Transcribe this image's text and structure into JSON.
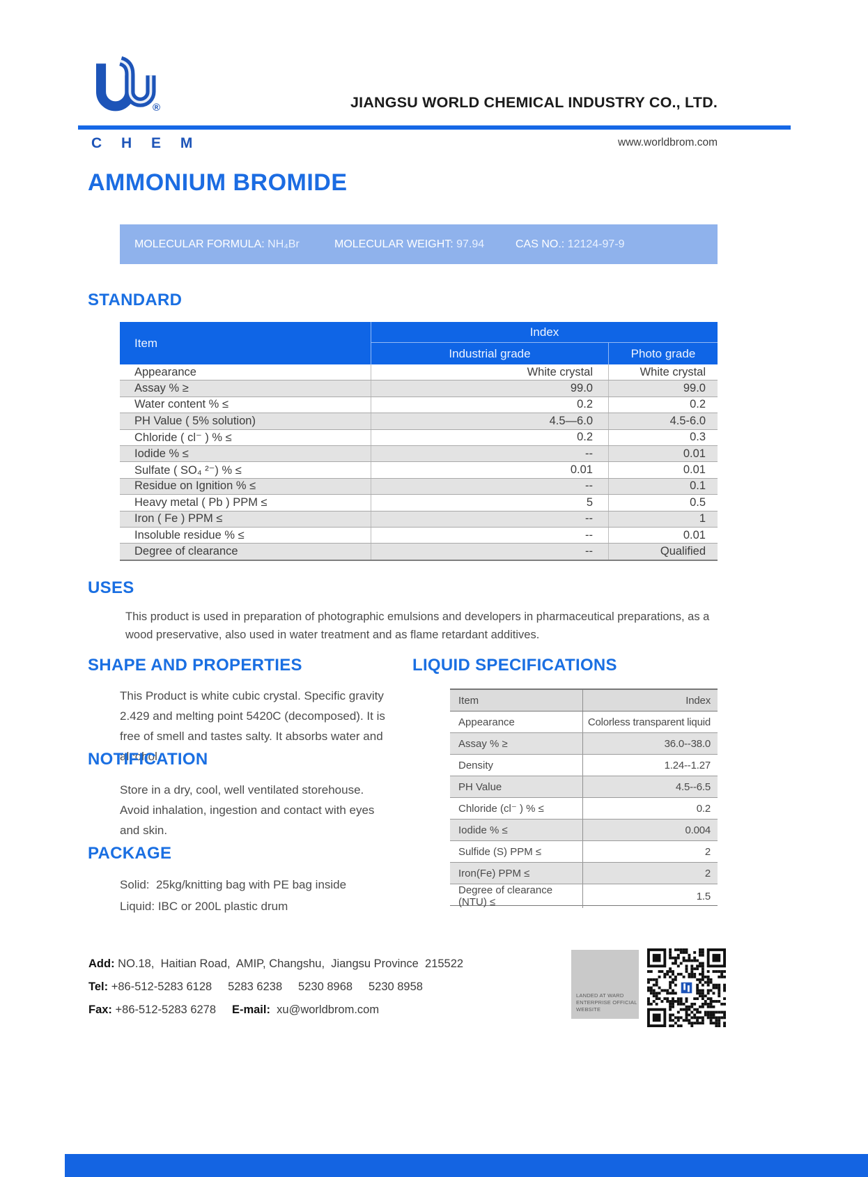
{
  "colors": {
    "accent_blue": "#1a6fe2",
    "table_header_blue": "#0f65e6",
    "logo_blue": "#1d54b8",
    "banner_blue": "#8fb2ec",
    "stripe_gray": "#e3e3e3",
    "bottom_bar_blue": "#1464e2"
  },
  "header": {
    "company_name": "JIANGSU WORLD CHEMICAL INDUSTRY CO., LTD.",
    "website": "www.worldbrom.com",
    "logo_text": "C H E M",
    "registered_mark": "®"
  },
  "title": "AMMONIUM BROMIDE",
  "banner": {
    "items": [
      {
        "label": "MOLECULAR FORMULA: ",
        "value": "NH₄Br"
      },
      {
        "label": "MOLECULAR WEIGHT: ",
        "value": "97.94"
      },
      {
        "label": "CAS NO.: ",
        "value": "12124-97-9"
      }
    ]
  },
  "standard": {
    "heading": "STANDARD",
    "table": {
      "item_header": "Item",
      "index_header": "Index",
      "col_industrial": "Industrial grade",
      "col_photo": "Photo grade",
      "rows": [
        {
          "item": "Appearance",
          "industrial": "White crystal",
          "photo": "White crystal"
        },
        {
          "item": "Assay % ≥",
          "industrial": "99.0",
          "photo": "99.0"
        },
        {
          "item": "Water content % ≤",
          "industrial": "0.2",
          "photo": "0.2"
        },
        {
          "item": "PH Value ( 5% solution)",
          "industrial": "4.5—6.0",
          "photo": "4.5-6.0"
        },
        {
          "item": "Chloride ( cl⁻ ) % ≤",
          "industrial": "0.2",
          "photo": "0.3"
        },
        {
          "item": "Iodide % ≤",
          "industrial": "--",
          "photo": "0.01"
        },
        {
          "item": "Sulfate ( SO₄ ²⁻) % ≤",
          "industrial": "0.01",
          "photo": "0.01"
        },
        {
          "item": "Residue on Ignition % ≤",
          "industrial": "--",
          "photo": "0.1"
        },
        {
          "item": "Heavy metal ( Pb ) PPM ≤",
          "industrial": "5",
          "photo": "0.5"
        },
        {
          "item": "Iron ( Fe ) PPM ≤",
          "industrial": "--",
          "photo": "1"
        },
        {
          "item": "Insoluble residue % ≤",
          "industrial": "--",
          "photo": "0.01"
        },
        {
          "item": "Degree of clearance",
          "industrial": "--",
          "photo": "Qualified"
        }
      ]
    }
  },
  "uses": {
    "heading": "USES",
    "text": "This product is used in preparation of photographic emulsions and developers in pharmaceutical preparations, as a wood preservative, also used in water treatment and as flame retardant additives."
  },
  "shape": {
    "heading": "SHAPE AND PROPERTIES",
    "text": "This Product is white cubic crystal. Specific gravity 2.429 and melting point 5420C (decomposed). It is free of smell and tastes salty. It absorbs water and alcohol."
  },
  "notification": {
    "heading": "NOTIFICATION",
    "text": "Store in a dry, cool, well ventilated storehouse. Avoid inhalation, ingestion and contact with eyes and skin."
  },
  "package": {
    "heading": "PACKAGE",
    "solid_line": "Solid:  25kg/knitting bag with PE bag inside",
    "liquid_line": "Liquid: IBC or 200L plastic drum"
  },
  "liquid_specs": {
    "heading": "LIQUID SPECIFICATIONS",
    "table": {
      "item_header": "Item",
      "index_header": "Index",
      "rows": [
        {
          "item": "Appearance",
          "value": "Colorless transparent liquid"
        },
        {
          "item": "Assay % ≥",
          "value": "36.0--38.0"
        },
        {
          "item": "Density",
          "value": "1.24--1.27"
        },
        {
          "item": "PH Value",
          "value": "4.5--6.5"
        },
        {
          "item": "Chloride (cl⁻ ) % ≤",
          "value": "0.2"
        },
        {
          "item": "Iodide % ≤",
          "value": "0.004"
        },
        {
          "item": "Sulfide (S) PPM ≤",
          "value": "2"
        },
        {
          "item": "Iron(Fe) PPM ≤",
          "value": "2"
        },
        {
          "item": "Degree of clearance (NTU) ≤",
          "value": "1.5"
        }
      ]
    }
  },
  "footer": {
    "add_label": "Add:",
    "add_text": " NO.18,  Haitian Road,  AMIP, Changshu,  Jiangsu Province  215522",
    "tel_label": "Tel:",
    "tel_text": " +86-512-5283 6128     5283 6238     5230 8968     5230 8958",
    "fax_label": "Fax:",
    "fax_text": " +86-512-5283 6278     ",
    "email_label": "E-mail:",
    "email_text": "  xu@worldbrom.com",
    "qr_caption_1": "LANDED AT WARD",
    "qr_caption_2": "ENTERPRISE OFFICIAL",
    "qr_caption_3": "WEBSITE"
  }
}
